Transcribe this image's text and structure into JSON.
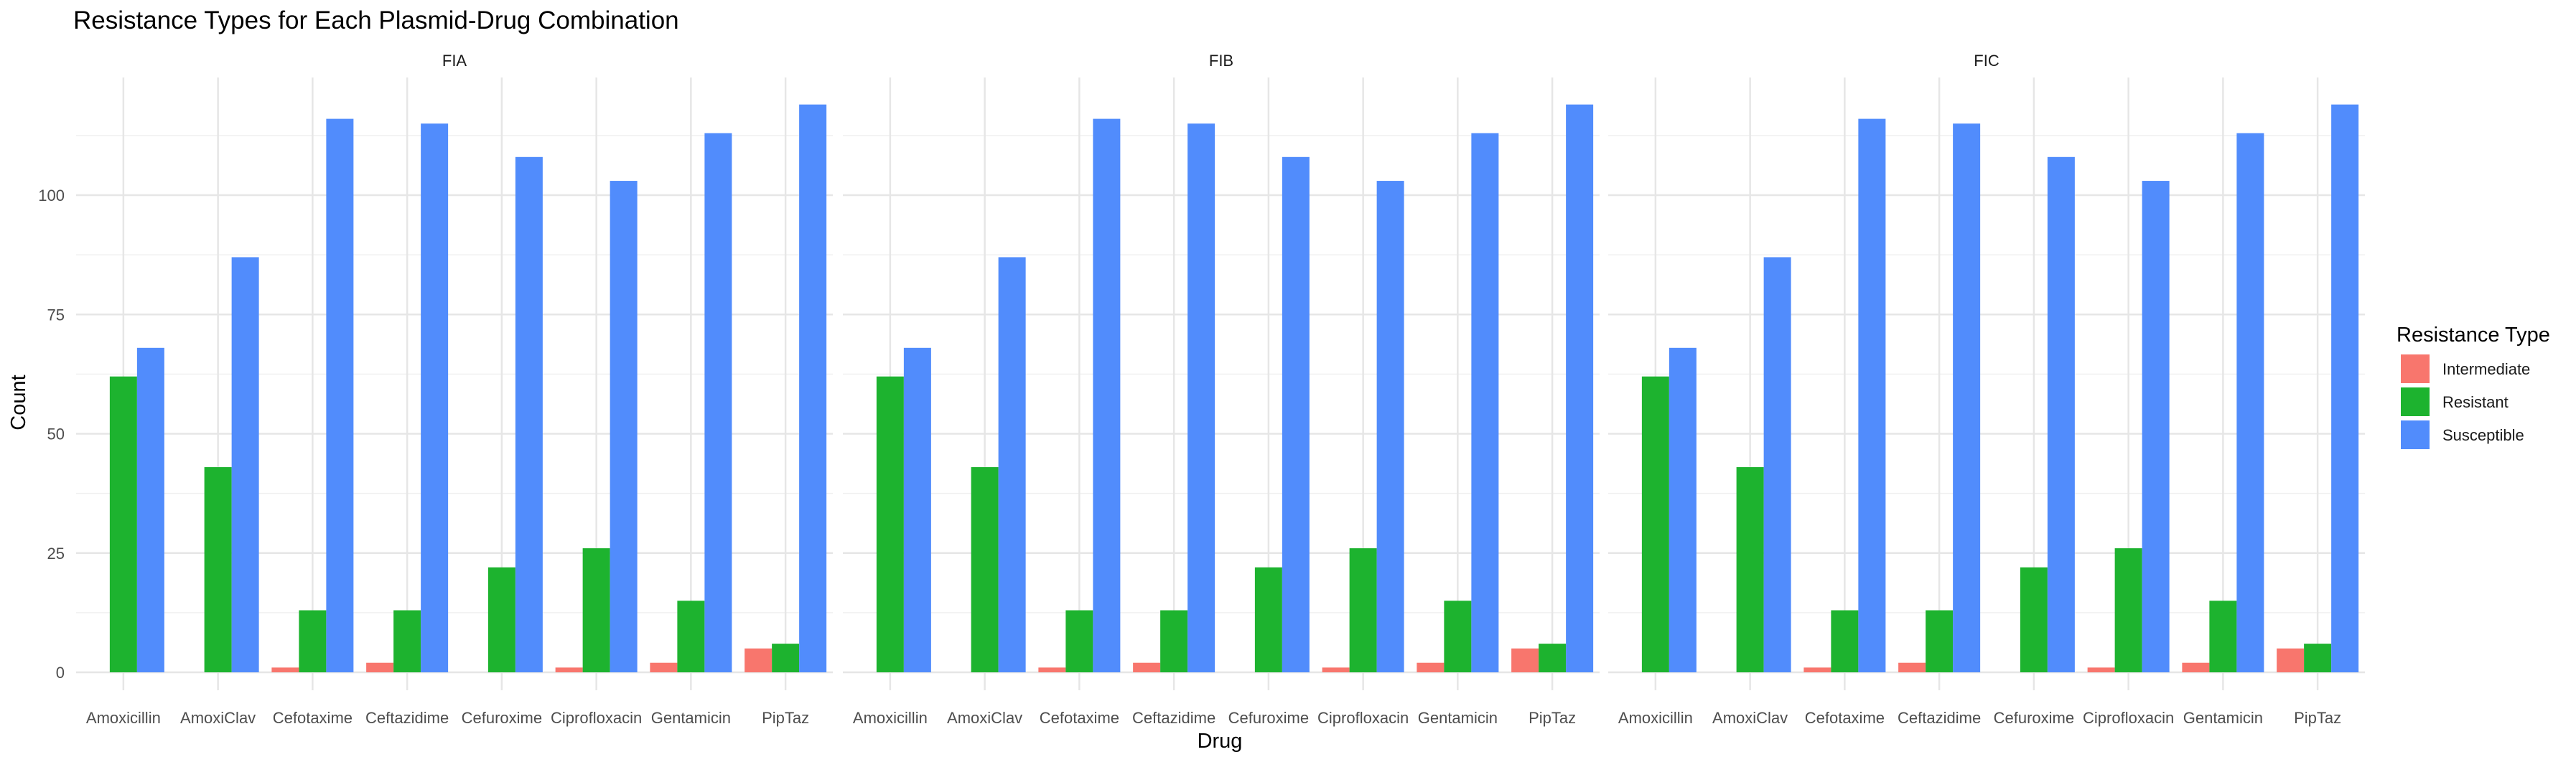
{
  "chart_data": {
    "type": "bar",
    "title": "Resistance Types for Each Plasmid-Drug Combination",
    "xlabel": "Drug",
    "ylabel": "Count",
    "ylim": [
      0,
      122
    ],
    "yticks": [
      0,
      25,
      50,
      75,
      100
    ],
    "grid": true,
    "legend_position": "right",
    "legend": {
      "title": "Resistance Type",
      "entries": [
        {
          "name": "Intermediate",
          "color": "#F8766D"
        },
        {
          "name": "Resistant",
          "color": "#1DB32F"
        },
        {
          "name": "Susceptible",
          "color": "#518CFC"
        }
      ]
    },
    "categories": [
      "Amoxicillin",
      "AmoxiClav",
      "Cefotaxime",
      "Ceftazidime",
      "Cefuroxime",
      "Ciprofloxacin",
      "Gentamicin",
      "PipTaz"
    ],
    "facets": [
      "FIA",
      "FIB",
      "FIC"
    ],
    "series": [
      {
        "name": "Intermediate",
        "color": "#F8766D",
        "values": [
          0,
          0,
          1,
          2,
          0,
          1,
          2,
          5
        ]
      },
      {
        "name": "Resistant",
        "color": "#1DB32F",
        "values": [
          62,
          43,
          13,
          13,
          22,
          26,
          15,
          6
        ]
      },
      {
        "name": "Susceptible",
        "color": "#518CFC",
        "values": [
          68,
          87,
          116,
          115,
          108,
          103,
          113,
          119
        ]
      }
    ]
  }
}
